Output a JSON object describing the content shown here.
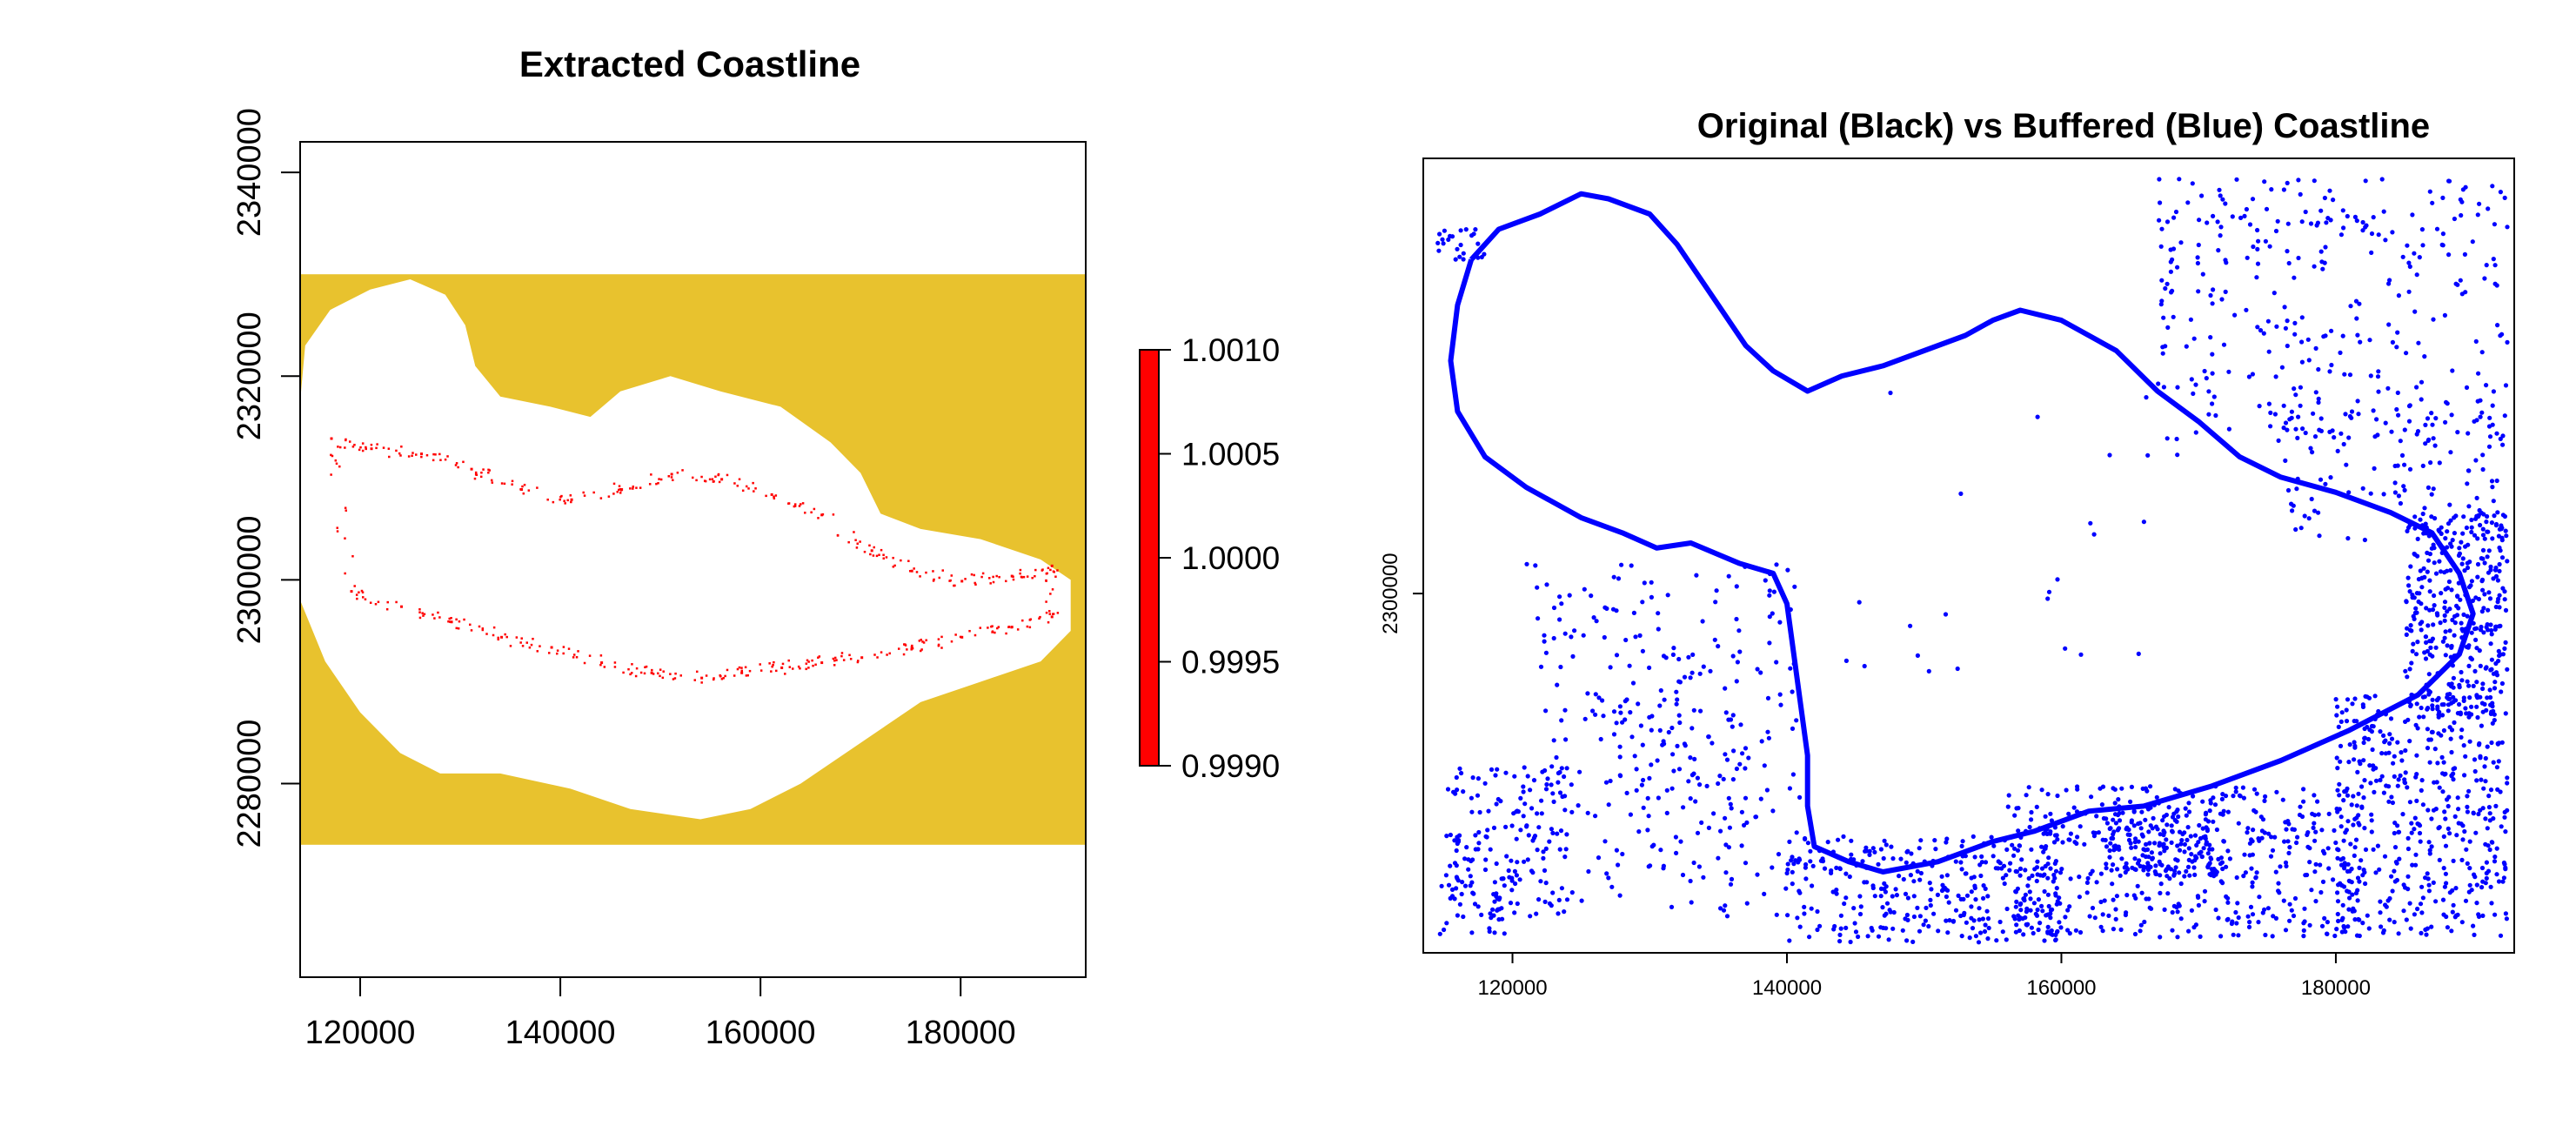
{
  "chart_data": [
    {
      "type": "heatmap",
      "title": "Extracted Coastline",
      "xlabel": "",
      "ylabel": "",
      "xlim": [
        114000,
        192500
      ],
      "ylim": [
        2261000,
        2343000
      ],
      "x_ticks": [
        120000,
        140000,
        160000,
        180000
      ],
      "y_ticks": [
        2280000,
        2300000,
        2320000,
        2340000
      ],
      "x_tick_labels": [
        "120000",
        "140000",
        "160000",
        "180000"
      ],
      "y_tick_labels": [
        "2280000",
        "2300000",
        "2320000",
        "2340000"
      ],
      "raster_extent": {
        "x": [
          114000,
          192500
        ],
        "y": [
          2274000,
          2330000
        ]
      },
      "colors": {
        "background_cells": "#E8C22E",
        "land_na": "#FFFFFF",
        "coastline_cells": "#FF0000"
      },
      "legend": {
        "position": "right",
        "color": "#FF0000",
        "range": [
          0.999,
          1.001
        ],
        "ticks": [
          1.001,
          1.0005,
          1.0,
          0.9995,
          0.999
        ],
        "tick_labels": [
          "1.0010",
          "1.0005",
          "1.0000",
          "0.9995",
          "0.9990"
        ]
      },
      "coastline_polygon": [
        [
          114000,
          2317500
        ],
        [
          114500,
          2323000
        ],
        [
          117000,
          2326500
        ],
        [
          121000,
          2328500
        ],
        [
          125000,
          2329500
        ],
        [
          128500,
          2328000
        ],
        [
          130500,
          2325000
        ],
        [
          131500,
          2321000
        ],
        [
          134000,
          2318000
        ],
        [
          139000,
          2317000
        ],
        [
          143000,
          2316000
        ],
        [
          146000,
          2318500
        ],
        [
          151000,
          2320000
        ],
        [
          156000,
          2318500
        ],
        [
          162000,
          2317000
        ],
        [
          167000,
          2313500
        ],
        [
          170000,
          2310500
        ],
        [
          172000,
          2306500
        ],
        [
          176000,
          2305000
        ],
        [
          182000,
          2304000
        ],
        [
          188000,
          2302000
        ],
        [
          191000,
          2300000
        ],
        [
          191000,
          2295000
        ],
        [
          188000,
          2292000
        ],
        [
          182000,
          2290000
        ],
        [
          176000,
          2288000
        ],
        [
          170000,
          2284000
        ],
        [
          164000,
          2280000
        ],
        [
          159000,
          2277500
        ],
        [
          154000,
          2276500
        ],
        [
          147000,
          2277500
        ],
        [
          141000,
          2279500
        ],
        [
          134000,
          2281000
        ],
        [
          128000,
          2281000
        ],
        [
          124000,
          2283000
        ],
        [
          120000,
          2287000
        ],
        [
          116500,
          2292000
        ],
        [
          114000,
          2298000
        ],
        [
          114000,
          2308000
        ]
      ],
      "coastline_points_sample": [
        [
          117000,
          2314000
        ],
        [
          121000,
          2313000
        ],
        [
          126000,
          2312500
        ],
        [
          131000,
          2311000
        ],
        [
          136000,
          2309000
        ],
        [
          141000,
          2308000
        ],
        [
          146000,
          2309000
        ],
        [
          151000,
          2310500
        ],
        [
          156000,
          2310000
        ],
        [
          161000,
          2308500
        ],
        [
          166000,
          2306500
        ],
        [
          171000,
          2303000
        ],
        [
          175000,
          2301000
        ],
        [
          180000,
          2300000
        ],
        [
          185000,
          2300500
        ],
        [
          189000,
          2301500
        ],
        [
          189000,
          2296500
        ],
        [
          185000,
          2295500
        ],
        [
          180000,
          2294500
        ],
        [
          175000,
          2293500
        ],
        [
          170000,
          2292500
        ],
        [
          166000,
          2292000
        ],
        [
          162000,
          2291500
        ],
        [
          158000,
          2291000
        ],
        [
          154000,
          2290500
        ],
        [
          149000,
          2291000
        ],
        [
          144000,
          2292000
        ],
        [
          139000,
          2293500
        ],
        [
          134000,
          2294500
        ],
        [
          129000,
          2296000
        ],
        [
          124000,
          2297500
        ],
        [
          119000,
          2299000
        ]
      ]
    },
    {
      "type": "scatter",
      "title": "Original (Black) vs Buffered (Blue) Coastline",
      "xlabel": "",
      "ylabel": "",
      "xlim": [
        113500,
        193000
      ],
      "ylim": [
        2264500,
        2343000
      ],
      "x_ticks": [
        120000,
        140000,
        160000,
        180000
      ],
      "y_ticks": [
        2300000
      ],
      "x_tick_labels": [
        "120000",
        "140000",
        "160000",
        "180000"
      ],
      "y_tick_labels": [
        "2300000"
      ],
      "series": [
        {
          "color": "#0000FF",
          "outline": [
            [
              117000,
              2333000
            ],
            [
              119000,
              2336000
            ],
            [
              122000,
              2337500
            ],
            [
              125000,
              2339500
            ],
            [
              127000,
              2339000
            ],
            [
              130000,
              2337500
            ],
            [
              132000,
              2334500
            ],
            [
              133500,
              2331500
            ],
            [
              135000,
              2328500
            ],
            [
              137000,
              2324500
            ],
            [
              139000,
              2322000
            ],
            [
              141500,
              2320000
            ],
            [
              144000,
              2321500
            ],
            [
              147000,
              2322500
            ],
            [
              150000,
              2324000
            ],
            [
              153000,
              2325500
            ],
            [
              155000,
              2327000
            ],
            [
              157000,
              2328000
            ],
            [
              160000,
              2327000
            ],
            [
              164000,
              2324000
            ],
            [
              167000,
              2320000
            ],
            [
              170000,
              2317000
            ],
            [
              173000,
              2313500
            ],
            [
              176000,
              2311500
            ],
            [
              180000,
              2310000
            ],
            [
              184000,
              2308000
            ],
            [
              187000,
              2306000
            ],
            [
              189000,
              2302000
            ],
            [
              190000,
              2298000
            ],
            [
              189000,
              2294000
            ],
            [
              186000,
              2290000
            ],
            [
              181000,
              2286500
            ],
            [
              176000,
              2283500
            ],
            [
              171000,
              2281000
            ],
            [
              166000,
              2279000
            ],
            [
              162000,
              2278500
            ],
            [
              158000,
              2276500
            ],
            [
              155000,
              2275500
            ],
            [
              151000,
              2273500
            ],
            [
              147000,
              2272500
            ],
            [
              144500,
              2273500
            ],
            [
              142000,
              2275000
            ],
            [
              141500,
              2279000
            ],
            [
              141500,
              2284000
            ],
            [
              141000,
              2289000
            ],
            [
              140500,
              2294000
            ],
            [
              140000,
              2299000
            ],
            [
              139000,
              2302000
            ],
            [
              136500,
              2303000
            ],
            [
              133000,
              2305000
            ],
            [
              130500,
              2304500
            ],
            [
              128000,
              2306000
            ],
            [
              125000,
              2307500
            ],
            [
              121000,
              2310500
            ],
            [
              118000,
              2313500
            ],
            [
              116000,
              2318000
            ],
            [
              115500,
              2323000
            ],
            [
              116000,
              2328500
            ],
            [
              117000,
              2333000
            ]
          ],
          "clusters": [
            {
              "x_range": [
                115000,
                124000
              ],
              "y_range": [
                2268000,
                2283000
              ],
              "count": 140
            },
            {
              "x_range": [
                114500,
                120000
              ],
              "y_range": [
                2266000,
                2276000
              ],
              "count": 50
            },
            {
              "x_range": [
                121000,
                141000
              ],
              "y_range": [
                2268000,
                2303000
              ],
              "count": 260
            },
            {
              "x_range": [
                128000,
                137000
              ],
              "y_range": [
                2275000,
                2296000
              ],
              "count": 60
            },
            {
              "x_range": [
                140000,
                160000
              ],
              "y_range": [
                2265500,
                2276000
              ],
              "count": 330
            },
            {
              "x_range": [
                156000,
                182000
              ],
              "y_range": [
                2266000,
                2281000
              ],
              "count": 470
            },
            {
              "x_range": [
                163000,
                172000
              ],
              "y_range": [
                2272000,
                2279000
              ],
              "count": 180
            },
            {
              "x_range": [
                180000,
                192500
              ],
              "y_range": [
                2266000,
                2290000
              ],
              "count": 460
            },
            {
              "x_range": [
                185000,
                192500
              ],
              "y_range": [
                2288000,
                2308000
              ],
              "count": 360
            },
            {
              "x_range": [
                167000,
                192500
              ],
              "y_range": [
                2315000,
                2341000
              ],
              "count": 330
            },
            {
              "x_range": [
                176000,
                192500
              ],
              "y_range": [
                2305000,
                2318000
              ],
              "count": 110
            },
            {
              "x_range": [
                143000,
                170000
              ],
              "y_range": [
                2290000,
                2320000
              ],
              "count": 25
            },
            {
              "x_range": [
                114500,
                118000
              ],
              "y_range": [
                2333000,
                2336000
              ],
              "count": 25
            }
          ]
        }
      ]
    }
  ]
}
